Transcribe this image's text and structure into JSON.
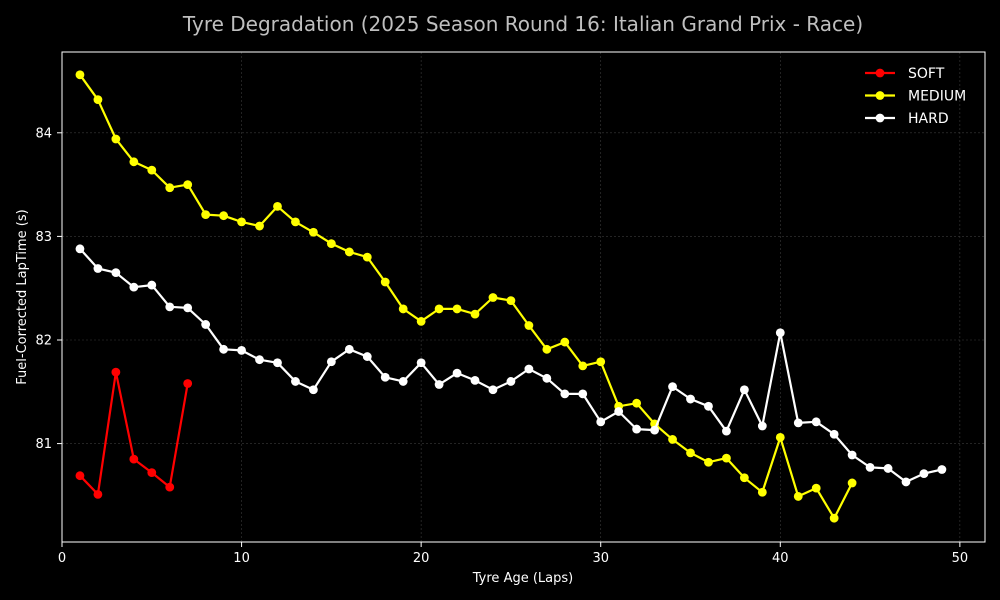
{
  "chart_data": {
    "type": "line",
    "title": "Tyre Degradation (2025 Season Round 16: Italian Grand Prix - Race)",
    "xlabel": "Tyre Age (Laps)",
    "ylabel": "Fuel-Corrected LapTime (s)",
    "xlim": [
      0,
      51.4
    ],
    "ylim": [
      80.05,
      84.78
    ],
    "xticks": [
      0,
      10,
      20,
      30,
      40,
      50
    ],
    "yticks": [
      81,
      82,
      83,
      84
    ],
    "grid": true,
    "legend_position": "top-right",
    "background": "#000000",
    "series": [
      {
        "name": "SOFT",
        "color": "#ff0000",
        "x": [
          1,
          2,
          3,
          4,
          5,
          6,
          7
        ],
        "y": [
          80.69,
          80.51,
          81.69,
          80.85,
          80.72,
          80.58,
          81.58
        ]
      },
      {
        "name": "MEDIUM",
        "color": "#ffff00",
        "x": [
          1,
          2,
          3,
          4,
          5,
          6,
          7,
          8,
          9,
          10,
          11,
          12,
          13,
          14,
          15,
          16,
          17,
          18,
          19,
          20,
          21,
          22,
          23,
          24,
          25,
          26,
          27,
          28,
          29,
          30,
          31,
          32,
          33,
          34,
          35,
          36,
          37,
          38,
          39,
          40,
          41,
          42,
          43,
          44
        ],
        "y": [
          84.56,
          84.32,
          83.94,
          83.72,
          83.64,
          83.47,
          83.5,
          83.21,
          83.2,
          83.14,
          83.1,
          83.29,
          83.14,
          83.04,
          82.93,
          82.85,
          82.8,
          82.56,
          82.3,
          82.18,
          82.3,
          82.3,
          82.25,
          82.41,
          82.38,
          82.14,
          81.91,
          81.98,
          81.75,
          81.79,
          81.36,
          81.39,
          81.19,
          81.04,
          80.91,
          80.82,
          80.86,
          80.67,
          80.53,
          81.06,
          80.49,
          80.57,
          80.28,
          80.62
        ]
      },
      {
        "name": "HARD",
        "color": "#ffffff",
        "x": [
          1,
          2,
          3,
          4,
          5,
          6,
          7,
          8,
          9,
          10,
          11,
          12,
          13,
          14,
          15,
          16,
          17,
          18,
          19,
          20,
          21,
          22,
          23,
          24,
          25,
          26,
          27,
          28,
          29,
          30,
          31,
          32,
          33,
          34,
          35,
          36,
          37,
          38,
          39,
          40,
          41,
          42,
          43,
          44,
          45,
          46,
          47,
          48,
          49
        ],
        "y": [
          82.88,
          82.69,
          82.65,
          82.51,
          82.53,
          82.32,
          82.31,
          82.15,
          81.91,
          81.9,
          81.81,
          81.78,
          81.6,
          81.52,
          81.79,
          81.91,
          81.84,
          81.64,
          81.6,
          81.78,
          81.57,
          81.68,
          81.61,
          81.52,
          81.6,
          81.72,
          81.63,
          81.48,
          81.48,
          81.21,
          81.31,
          81.14,
          81.13,
          81.55,
          81.43,
          81.36,
          81.12,
          81.52,
          81.17,
          82.07,
          81.2,
          81.21,
          81.09,
          80.89,
          80.77,
          80.76,
          80.63,
          80.71,
          80.75
        ]
      }
    ]
  }
}
